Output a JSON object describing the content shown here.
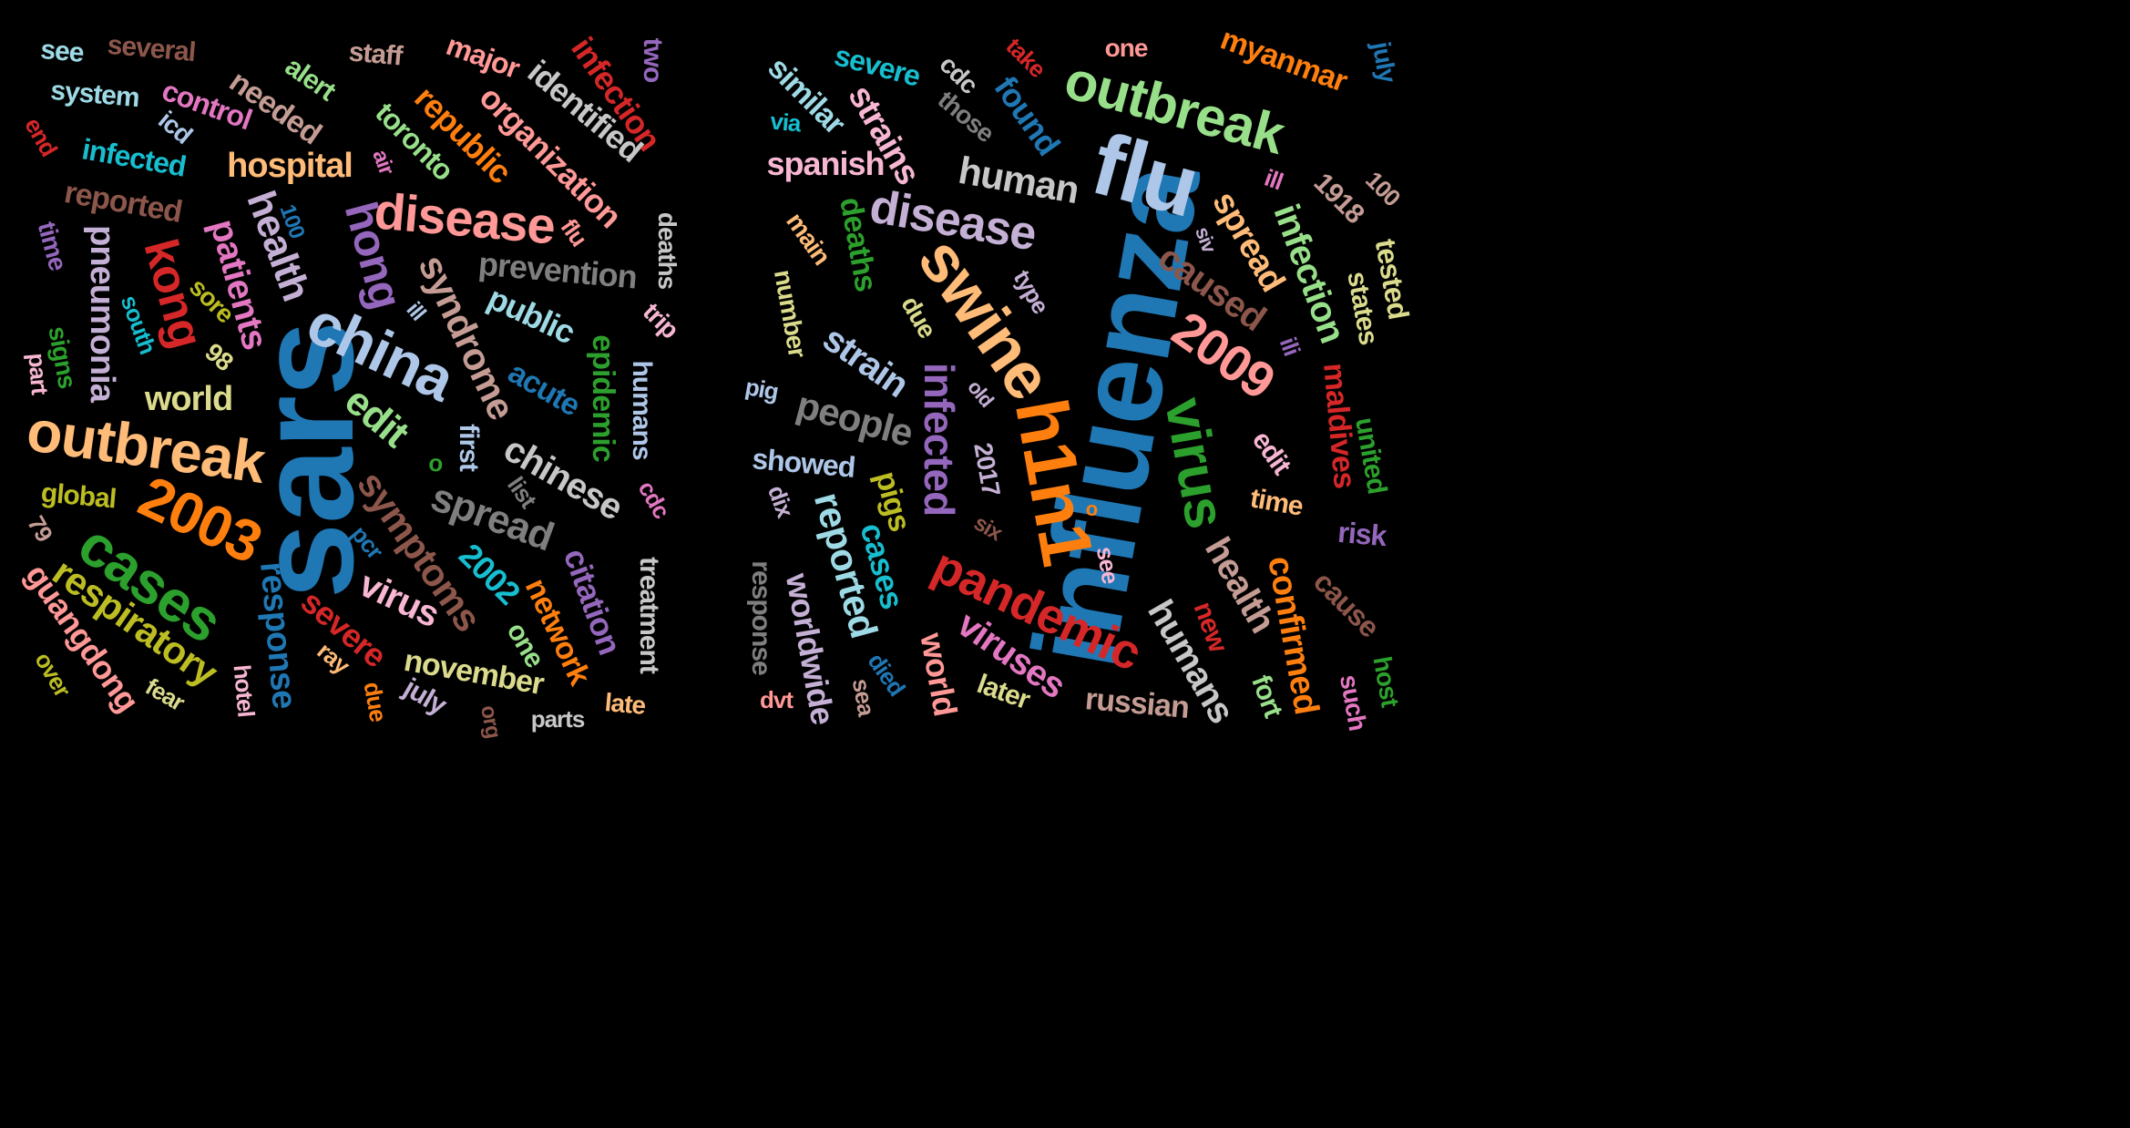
{
  "clouds": [
    {
      "id": "sars",
      "words": [
        {
          "text": "sars",
          "color": "#1f77b4"
        },
        {
          "text": "china",
          "color": "#aec7e8"
        },
        {
          "text": "outbreak",
          "color": "#ffbb78"
        },
        {
          "text": "2003",
          "color": "#ff7f0e"
        },
        {
          "text": "cases",
          "color": "#2ca02c"
        },
        {
          "text": "disease",
          "color": "#ff9896"
        },
        {
          "text": "hong",
          "color": "#9467bd"
        },
        {
          "text": "kong",
          "color": "#d62728"
        },
        {
          "text": "health",
          "color": "#c5b0d5"
        },
        {
          "text": "syndrome",
          "color": "#c49c94"
        },
        {
          "text": "respiratory",
          "color": "#bcbd22"
        },
        {
          "text": "symptoms",
          "color": "#8c564b"
        },
        {
          "text": "spread",
          "color": "#7f7f7f"
        },
        {
          "text": "edit",
          "color": "#98df8a"
        },
        {
          "text": "patients",
          "color": "#e377c2"
        },
        {
          "text": "chinese",
          "color": "#c7c7c7"
        },
        {
          "text": "prevention",
          "color": "#7f7f7f"
        },
        {
          "text": "pneumonia",
          "color": "#c5b0d5"
        },
        {
          "text": "hospital",
          "color": "#ffbb78"
        },
        {
          "text": "organization",
          "color": "#ff9896"
        },
        {
          "text": "republic",
          "color": "#ff7f0e"
        },
        {
          "text": "identified",
          "color": "#c7c7c7"
        },
        {
          "text": "infection",
          "color": "#d62728"
        },
        {
          "text": "public",
          "color": "#9edae5"
        },
        {
          "text": "acute",
          "color": "#1f77b4"
        },
        {
          "text": "epidemic",
          "color": "#2ca02c"
        },
        {
          "text": "virus",
          "color": "#f7b6d2"
        },
        {
          "text": "world",
          "color": "#dbdb8d"
        },
        {
          "text": "2002",
          "color": "#17becf"
        },
        {
          "text": "response",
          "color": "#1f77b4"
        },
        {
          "text": "citation",
          "color": "#9467bd"
        },
        {
          "text": "network",
          "color": "#ff7f0e"
        },
        {
          "text": "severe",
          "color": "#d62728"
        },
        {
          "text": "november",
          "color": "#dbdb8d"
        },
        {
          "text": "guangdong",
          "color": "#ff9896"
        },
        {
          "text": "treatment",
          "color": "#c7c7c7"
        },
        {
          "text": "humans",
          "color": "#aec7e8"
        },
        {
          "text": "first",
          "color": "#aec7e8"
        },
        {
          "text": "toronto",
          "color": "#98df8a"
        },
        {
          "text": "reported",
          "color": "#8c564b"
        },
        {
          "text": "infected",
          "color": "#17becf"
        },
        {
          "text": "system",
          "color": "#9edae5"
        },
        {
          "text": "control",
          "color": "#e377c2"
        },
        {
          "text": "needed",
          "color": "#c49c94"
        },
        {
          "text": "several",
          "color": "#8c564b"
        },
        {
          "text": "major",
          "color": "#ff9896"
        },
        {
          "text": "staff",
          "color": "#c49c94"
        },
        {
          "text": "alert",
          "color": "#98df8a"
        },
        {
          "text": "see",
          "color": "#9edae5"
        },
        {
          "text": "two",
          "color": "#9467bd"
        },
        {
          "text": "icd",
          "color": "#aec7e8"
        },
        {
          "text": "end",
          "color": "#d62728"
        },
        {
          "text": "air",
          "color": "#e377c2"
        },
        {
          "text": "100",
          "color": "#1f77b4"
        },
        {
          "text": "flu",
          "color": "#ff9896"
        },
        {
          "text": "deaths",
          "color": "#c7c7c7"
        },
        {
          "text": "time",
          "color": "#9467bd"
        },
        {
          "text": "sore",
          "color": "#bcbd22"
        },
        {
          "text": "south",
          "color": "#17becf"
        },
        {
          "text": "signs",
          "color": "#2ca02c"
        },
        {
          "text": "part",
          "color": "#f7b6d2"
        },
        {
          "text": "98",
          "color": "#dbdb8d"
        },
        {
          "text": "ill",
          "color": "#aec7e8"
        },
        {
          "text": "trip",
          "color": "#f7b6d2"
        },
        {
          "text": "global",
          "color": "#bcbd22"
        },
        {
          "text": "o",
          "color": "#2ca02c"
        },
        {
          "text": "list",
          "color": "#7f7f7f"
        },
        {
          "text": "cdc",
          "color": "#e377c2"
        },
        {
          "text": "79",
          "color": "#c49c94"
        },
        {
          "text": "pcr",
          "color": "#1f77b4"
        },
        {
          "text": "ray",
          "color": "#ffbb78"
        },
        {
          "text": "hotel",
          "color": "#f7b6d2"
        },
        {
          "text": "fear",
          "color": "#dbdb8d"
        },
        {
          "text": "over",
          "color": "#bcbd22"
        },
        {
          "text": "due",
          "color": "#ff7f0e"
        },
        {
          "text": "july",
          "color": "#c5b0d5"
        },
        {
          "text": "org",
          "color": "#8c564b"
        },
        {
          "text": "parts",
          "color": "#c7c7c7"
        },
        {
          "text": "late",
          "color": "#ffbb78"
        },
        {
          "text": "one",
          "color": "#98df8a"
        }
      ]
    },
    {
      "id": "influenza",
      "words": [
        {
          "text": "influenza",
          "color": "#1f77b4"
        },
        {
          "text": "flu",
          "color": "#aec7e8"
        },
        {
          "text": "h1n1",
          "color": "#ff7f0e"
        },
        {
          "text": "swine",
          "color": "#ffbb78"
        },
        {
          "text": "pandemic",
          "color": "#d62728"
        },
        {
          "text": "virus",
          "color": "#2ca02c"
        },
        {
          "text": "outbreak",
          "color": "#98df8a"
        },
        {
          "text": "2009",
          "color": "#ff9896"
        },
        {
          "text": "disease",
          "color": "#c5b0d5"
        },
        {
          "text": "human",
          "color": "#c7c7c7"
        },
        {
          "text": "infected",
          "color": "#9467bd"
        },
        {
          "text": "people",
          "color": "#7f7f7f"
        },
        {
          "text": "strain",
          "color": "#aec7e8"
        },
        {
          "text": "caused",
          "color": "#8c564b"
        },
        {
          "text": "health",
          "color": "#c49c94"
        },
        {
          "text": "viruses",
          "color": "#e377c2"
        },
        {
          "text": "reported",
          "color": "#9edae5"
        },
        {
          "text": "cases",
          "color": "#17becf"
        },
        {
          "text": "infection",
          "color": "#98df8a"
        },
        {
          "text": "spread",
          "color": "#ffbb78"
        },
        {
          "text": "humans",
          "color": "#c7c7c7"
        },
        {
          "text": "confirmed",
          "color": "#ff7f0e"
        },
        {
          "text": "strains",
          "color": "#f7b6d2"
        },
        {
          "text": "found",
          "color": "#1f77b4"
        },
        {
          "text": "similar",
          "color": "#9edae5"
        },
        {
          "text": "spanish",
          "color": "#f7b6d2"
        },
        {
          "text": "severe",
          "color": "#17becf"
        },
        {
          "text": "myanmar",
          "color": "#ff7f0e"
        },
        {
          "text": "deaths",
          "color": "#2ca02c"
        },
        {
          "text": "showed",
          "color": "#aec7e8"
        },
        {
          "text": "pigs",
          "color": "#bcbd22"
        },
        {
          "text": "worldwide",
          "color": "#c5b0d5"
        },
        {
          "text": "world",
          "color": "#ff9896"
        },
        {
          "text": "russian",
          "color": "#c49c94"
        },
        {
          "text": "maldives",
          "color": "#d62728"
        },
        {
          "text": "united",
          "color": "#2ca02c"
        },
        {
          "text": "tested",
          "color": "#dbdb8d"
        },
        {
          "text": "states",
          "color": "#dbdb8d"
        },
        {
          "text": "edit",
          "color": "#f7b6d2"
        },
        {
          "text": "time",
          "color": "#ffbb78"
        },
        {
          "text": "risk",
          "color": "#9467bd"
        },
        {
          "text": "cause",
          "color": "#8c564b"
        },
        {
          "text": "fort",
          "color": "#98df8a"
        },
        {
          "text": "new",
          "color": "#d62728"
        },
        {
          "text": "host",
          "color": "#2ca02c"
        },
        {
          "text": "such",
          "color": "#e377c2"
        },
        {
          "text": "1918",
          "color": "#c49c94"
        },
        {
          "text": "100",
          "color": "#c49c94"
        },
        {
          "text": "ill",
          "color": "#e377c2"
        },
        {
          "text": "one",
          "color": "#ff9896"
        },
        {
          "text": "take",
          "color": "#d62728"
        },
        {
          "text": "cdc",
          "color": "#c7c7c7"
        },
        {
          "text": "those",
          "color": "#7f7f7f"
        },
        {
          "text": "via",
          "color": "#17becf"
        },
        {
          "text": "july",
          "color": "#1f77b4"
        },
        {
          "text": "main",
          "color": "#ffbb78"
        },
        {
          "text": "number",
          "color": "#dbdb8d"
        },
        {
          "text": "due",
          "color": "#dbdb8d"
        },
        {
          "text": "type",
          "color": "#c5b0d5"
        },
        {
          "text": "siv",
          "color": "#c5b0d5"
        },
        {
          "text": "pig",
          "color": "#aec7e8"
        },
        {
          "text": "old",
          "color": "#c5b0d5"
        },
        {
          "text": "2017",
          "color": "#c5b0d5"
        },
        {
          "text": "six",
          "color": "#8c564b"
        },
        {
          "text": "dix",
          "color": "#c5b0d5"
        },
        {
          "text": "response",
          "color": "#7f7f7f"
        },
        {
          "text": "dvt",
          "color": "#ff9896"
        },
        {
          "text": "sea",
          "color": "#c49c94"
        },
        {
          "text": "died",
          "color": "#1f77b4"
        },
        {
          "text": "later",
          "color": "#dbdb8d"
        },
        {
          "text": "see",
          "color": "#f7b6d2"
        },
        {
          "text": "o",
          "color": "#ff7f0e"
        },
        {
          "text": "ili",
          "color": "#9467bd"
        }
      ]
    }
  ]
}
